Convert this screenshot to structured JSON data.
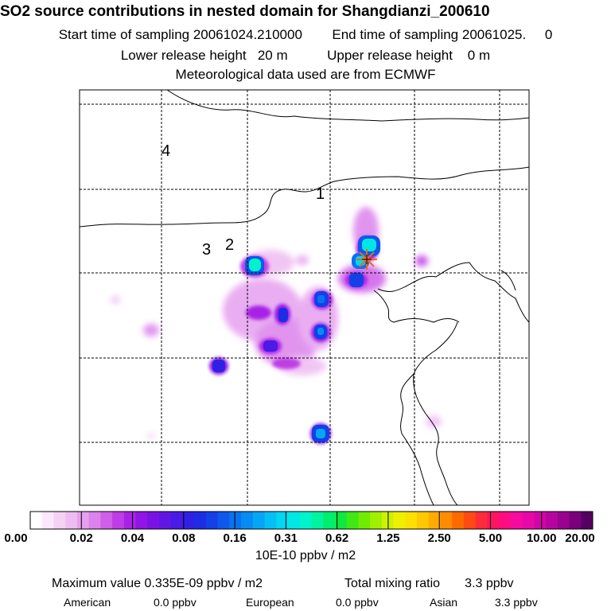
{
  "header": {
    "title": "SO2 source contributions in nested domain for Shangdianzi_200610",
    "start_label": "Start time of sampling 20061024.210000",
    "end_label": "End time of sampling 20061025.     0",
    "lower_release": "Lower release height   20 m",
    "upper_release": "Upper release height    0 m",
    "met_data": "Meteorological data used are from ECMWF"
  },
  "map": {
    "region_labels": [
      "4",
      "1",
      "3",
      "2"
    ],
    "receptor_marker": "star",
    "colors": {
      "frame": "#000000",
      "grid": "#000000",
      "marker": "#ff6600"
    }
  },
  "colorbar": {
    "tick_labels": [
      "0.00",
      "0.02",
      "0.04",
      "0.08",
      "0.16",
      "0.31",
      "0.62",
      "1.25",
      "2.50",
      "5.00",
      "10.00",
      "20.00"
    ],
    "unit": "10E-10 ppbv / m2",
    "colors": [
      "#ffffff",
      "#fbe8fb",
      "#f5d2f5",
      "#efbcf2",
      "#e6a0ef",
      "#dc82ec",
      "#cf5fe9",
      "#c03ce6",
      "#a822e6",
      "#9214e6",
      "#7a12e6",
      "#6216e6",
      "#4a1ae6",
      "#3020e6",
      "#1e2ce6",
      "#1440e8",
      "#0e58ec",
      "#0a72f0",
      "#088cf4",
      "#06a6f6",
      "#04c0f6",
      "#02d6f2",
      "#00e8e6",
      "#00f4cc",
      "#00f4a0",
      "#00ee70",
      "#10e840",
      "#40e814",
      "#70ec00",
      "#a0f000",
      "#ccf200",
      "#eef000",
      "#fce000",
      "#ffc800",
      "#ffac00",
      "#ff8c00",
      "#ff6a00",
      "#ff4a14",
      "#ff2a3a",
      "#ff1460",
      "#ff0c84",
      "#f60aa0",
      "#e808a8",
      "#d206a6",
      "#b8049e",
      "#9a0290",
      "#7a007c",
      "#560060"
    ]
  },
  "stats": {
    "max_value": "Maximum value  0.335E-09 ppbv / m2",
    "total_mixing": "Total mixing ratio       3.3 ppbv",
    "american_label": "American",
    "american_value": "0.0 ppbv",
    "european_label": "European",
    "european_value": "0.0 ppbv",
    "asian_label": "Asian",
    "asian_value": "3.3 ppbv"
  }
}
